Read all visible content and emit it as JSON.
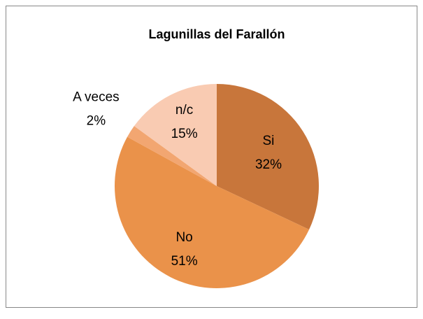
{
  "chart_data": {
    "type": "pie",
    "title": "Lagunillas del Farallón",
    "categories": [
      "Si",
      "No",
      "A veces",
      "n/c"
    ],
    "values": [
      32,
      51,
      2,
      15
    ],
    "value_labels": [
      "32%",
      "51%",
      "2%",
      "15%"
    ],
    "colors": [
      "#c8763b",
      "#ea924a",
      "#f2a671",
      "#f9cbb2"
    ]
  }
}
